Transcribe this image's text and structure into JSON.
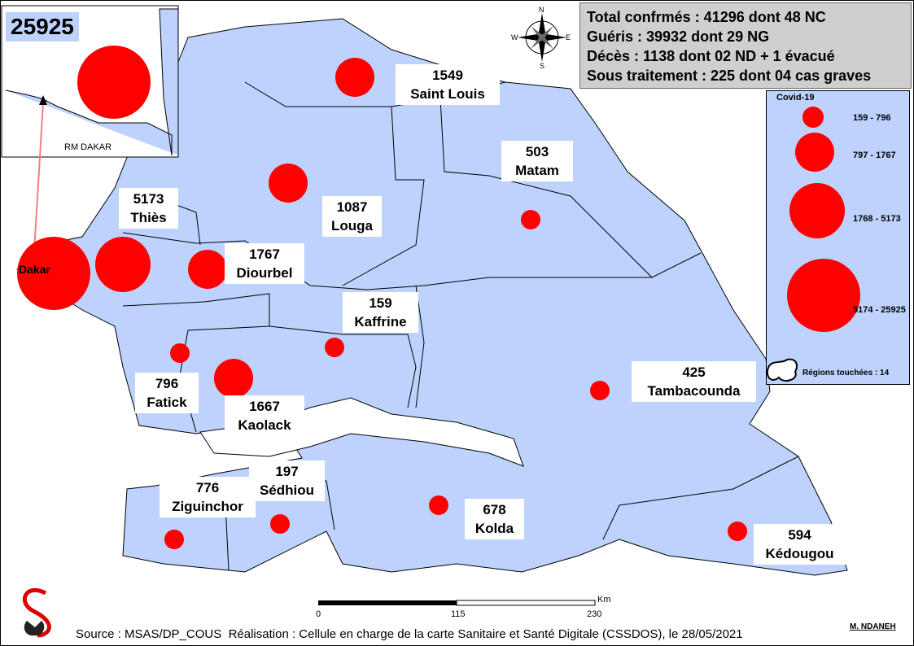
{
  "inset": {
    "total": "25925",
    "label": "RM DAKAR"
  },
  "compass": {
    "n": "N",
    "s": "S",
    "e": "E",
    "w": "W"
  },
  "stats": {
    "line1": "Total confrmés : 41296 dont 48 NC",
    "line2": "Guéris : 39932 dont 29 NG",
    "line3": "Décès : 1138 dont 02 ND + 1 évacué",
    "line4": "Sous traitement : 225 dont 04 cas graves"
  },
  "regions": [
    {
      "name": "Saint Louis",
      "cases": "1549"
    },
    {
      "name": "Matam",
      "cases": "503"
    },
    {
      "name": "Louga",
      "cases": "1087"
    },
    {
      "name": "Thiès",
      "cases": "5173"
    },
    {
      "name": "Dakar",
      "cases": "25925"
    },
    {
      "name": "Diourbel",
      "cases": "1767"
    },
    {
      "name": "Kaffrine",
      "cases": "159"
    },
    {
      "name": "Fatick",
      "cases": "796"
    },
    {
      "name": "Kaolack",
      "cases": "1667"
    },
    {
      "name": "Tambacounda",
      "cases": "425"
    },
    {
      "name": "Ziguinchor",
      "cases": "776"
    },
    {
      "name": "Sédhiou",
      "cases": "197"
    },
    {
      "name": "Kolda",
      "cases": "678"
    },
    {
      "name": "Kédougou",
      "cases": "594"
    }
  ],
  "legend": {
    "title": "Covid-19",
    "classes": [
      "159 - 796",
      "797 - 1767",
      "1768 - 5173",
      "5174 - 25925"
    ],
    "regions_touched": "Régions touchées : 14"
  },
  "scale_bar": {
    "ticks": [
      "0",
      "115",
      "230"
    ],
    "unit": "Km"
  },
  "footer": {
    "source": "Source : MSAS/DP_COUS",
    "credit": "Réalisation : Cellule en charge de la carte Sanitaire et Santé Digitale (CSSDOS), le 28/05/2021",
    "author": "M. NDANEH"
  },
  "colors": {
    "land": "#bdd2fc",
    "circle": "#ff0000",
    "stats_bg": "#cfcfcf"
  }
}
